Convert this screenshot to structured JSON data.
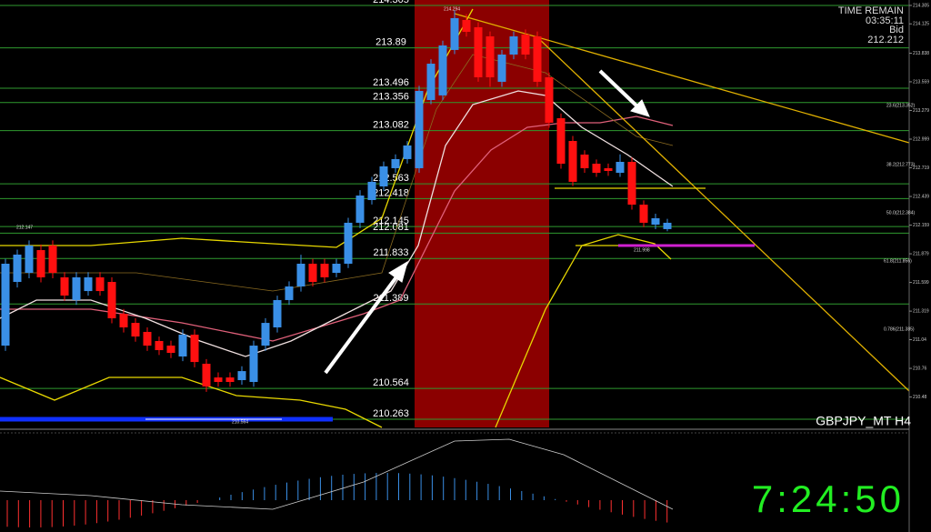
{
  "platform": {
    "timer_label": "TIME REMAIN",
    "timer_value": "03:35:11",
    "bid_label": "Bid",
    "bid_value": "212.212",
    "symbol": "GBPJPY_MT H4",
    "clock": "7:24:50"
  },
  "chart_data": {
    "type": "candlestick",
    "ylim": [
      210.183,
      214.358
    ],
    "yticks": [
      214.305,
      214.125,
      213.838,
      213.559,
      213.279,
      212.999,
      212.719,
      212.439,
      212.159,
      211.879,
      211.599,
      211.319,
      211.04,
      210.76,
      210.48
    ],
    "levels": [
      214.305,
      213.89,
      213.496,
      213.356,
      213.082,
      212.563,
      212.418,
      212.145,
      212.081,
      211.833,
      211.389,
      210.564,
      210.263
    ],
    "level_color": "#2f9a2f",
    "up_color": "#3a8fe6",
    "down_color": "#ff1010",
    "annotations": [
      "212.147",
      "214.294",
      "211.998",
      "210.564",
      "23.6(213.352)",
      "38.2(212.773)",
      "50.0(212.384)",
      "61.8(211.856)",
      "0.786(211.385)"
    ],
    "open": [
      210.982,
      211.604,
      211.693,
      211.915,
      211.96,
      211.649,
      211.427,
      211.515,
      211.649,
      211.604,
      211.293,
      211.204,
      211.116,
      211.027,
      210.982,
      210.876,
      211.089,
      210.805,
      210.671,
      210.671,
      210.645,
      210.627,
      210.982,
      211.16,
      211.427,
      211.56,
      211.782,
      211.782,
      211.693,
      211.782,
      212.182,
      212.404,
      212.537,
      212.715,
      212.804,
      212.715,
      213.381,
      213.426,
      213.87,
      214.163,
      214.092,
      214.003,
      213.559,
      213.825,
      214.021,
      214.003,
      213.603,
      213.203,
      212.981,
      212.848,
      212.759,
      212.715,
      212.67,
      212.777,
      212.359,
      212.164,
      212.12
    ],
    "high": [
      211.83,
      211.92,
      212.01,
      211.97,
      212.01,
      211.7,
      211.7,
      211.7,
      211.7,
      211.65,
      211.34,
      211.25,
      211.16,
      211.07,
      211.03,
      211.14,
      211.14,
      210.85,
      210.72,
      210.72,
      210.78,
      211.03,
      211.25,
      211.47,
      211.61,
      211.87,
      211.83,
      211.83,
      211.83,
      212.23,
      212.5,
      212.63,
      212.78,
      212.85,
      212.98,
      213.52,
      213.78,
      213.96,
      214.26,
      214.22,
      214.14,
      214.05,
      213.87,
      214.05,
      214.07,
      214.05,
      213.65,
      213.25,
      213.03,
      212.89,
      212.8,
      212.76,
      212.85,
      212.82,
      212.4,
      212.27,
      212.22
    ],
    "low": [
      210.93,
      211.55,
      211.64,
      211.6,
      211.64,
      211.42,
      211.38,
      211.47,
      211.47,
      211.2,
      211.11,
      211.02,
      210.93,
      210.89,
      210.86,
      210.83,
      210.77,
      210.53,
      210.58,
      210.58,
      210.6,
      210.58,
      210.93,
      211.11,
      211.38,
      211.51,
      211.56,
      211.6,
      211.65,
      211.74,
      212.13,
      212.36,
      212.49,
      212.67,
      212.76,
      212.67,
      213.34,
      213.38,
      213.83,
      214.0,
      213.56,
      213.51,
      213.51,
      213.78,
      213.78,
      213.51,
      213.11,
      212.71,
      212.54,
      212.67,
      212.63,
      212.64,
      212.63,
      212.31,
      212.14,
      212.12,
      212.1
    ],
    "close": [
      211.782,
      211.871,
      211.96,
      211.649,
      211.693,
      211.471,
      211.649,
      211.649,
      211.515,
      211.249,
      211.16,
      211.071,
      210.982,
      210.938,
      210.911,
      211.089,
      210.822,
      210.583,
      210.627,
      210.627,
      210.733,
      210.982,
      211.204,
      211.427,
      211.56,
      211.782,
      211.604,
      211.649,
      211.782,
      212.182,
      212.448,
      212.582,
      212.733,
      212.804,
      212.937,
      213.47,
      213.736,
      213.914,
      214.181,
      214.047,
      213.603,
      213.603,
      213.825,
      214.003,
      213.825,
      213.559,
      213.159,
      212.759,
      212.582,
      212.715,
      212.67,
      212.688,
      212.777,
      212.359,
      212.182,
      212.226,
      212.182
    ]
  }
}
